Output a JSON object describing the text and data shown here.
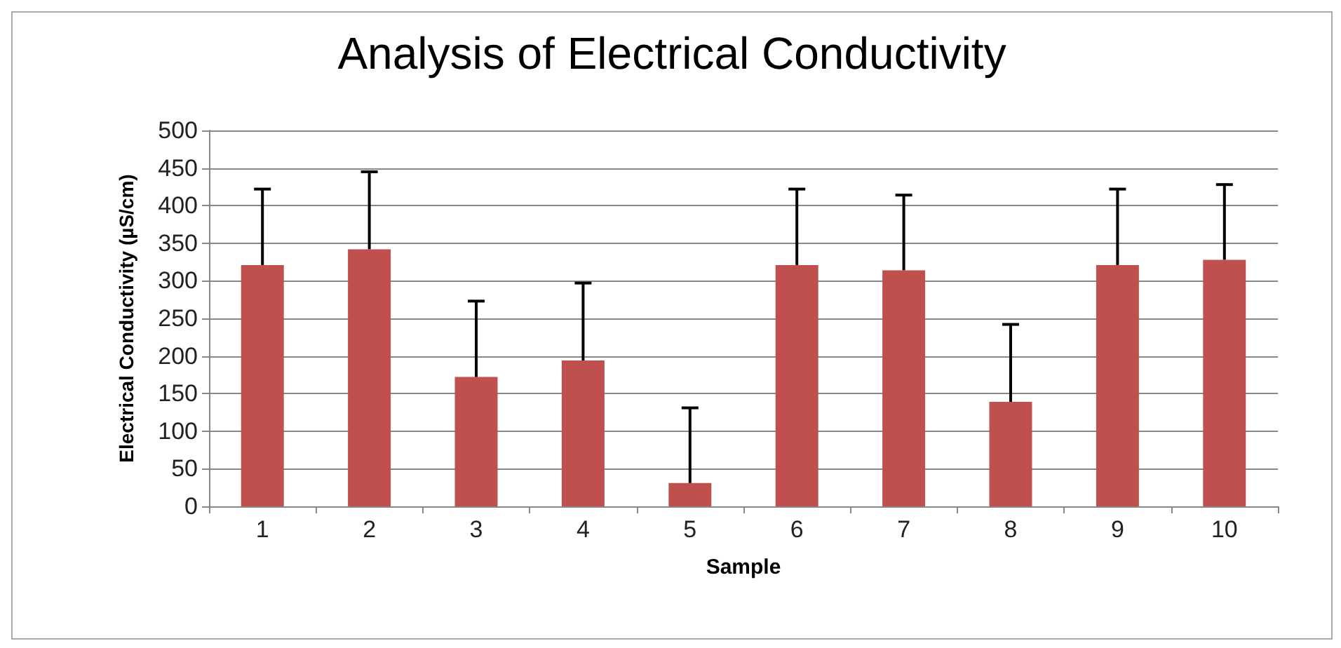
{
  "chart_data": {
    "type": "bar",
    "title": "Analysis of Electrical Conductivity",
    "xlabel": "Sample",
    "ylabel": "Electrical Conductivity (µS/cm)",
    "categories": [
      "1",
      "2",
      "3",
      "4",
      "5",
      "6",
      "7",
      "8",
      "9",
      "10"
    ],
    "values": [
      321,
      342,
      172,
      194,
      31,
      321,
      314,
      139,
      321,
      328
    ],
    "errors": [
      [
        321,
        422
      ],
      [
        342,
        445
      ],
      [
        172,
        273
      ],
      [
        194,
        297
      ],
      [
        31,
        131
      ],
      [
        321,
        422
      ],
      [
        314,
        414
      ],
      [
        139,
        242
      ],
      [
        321,
        422
      ],
      [
        328,
        428
      ]
    ],
    "color": "#c0504d",
    "ylim": [
      0,
      500
    ],
    "yticks": [
      0,
      50,
      100,
      150,
      200,
      250,
      300,
      350,
      400,
      450,
      500
    ],
    "grid": "y"
  }
}
